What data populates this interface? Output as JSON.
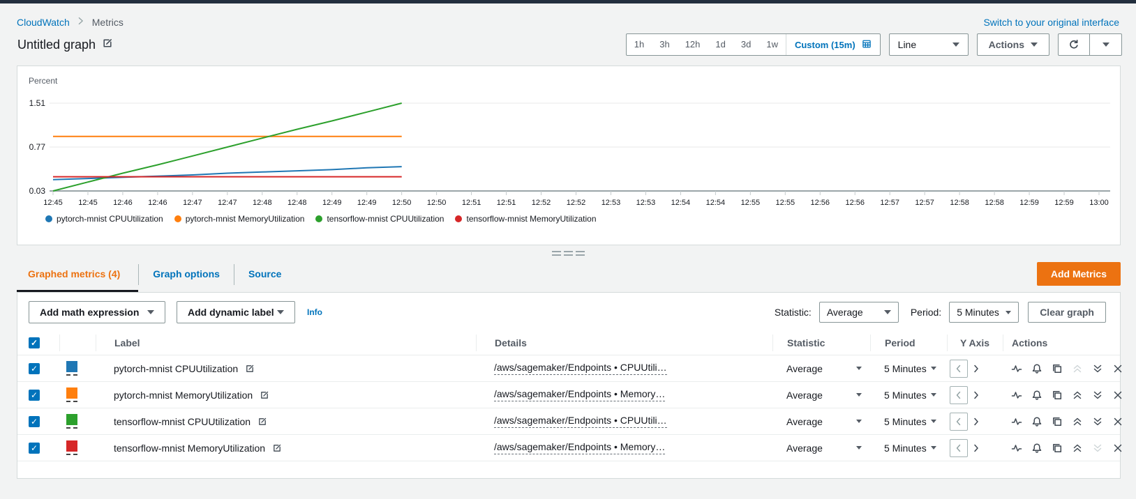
{
  "header": {
    "breadcrumb": [
      "CloudWatch",
      "Metrics"
    ],
    "switch_link": "Switch to your original interface",
    "title": "Untitled graph"
  },
  "controls": {
    "time_ranges": [
      "1h",
      "3h",
      "12h",
      "1d",
      "3d",
      "1w"
    ],
    "custom_range": "Custom (15m)",
    "chart_type": "Line",
    "actions_label": "Actions"
  },
  "chart_data": {
    "type": "line",
    "ylabel": "Percent",
    "yticks": [
      1.51,
      0.77,
      0.03
    ],
    "ylim": [
      0.03,
      1.51
    ],
    "grid": true,
    "legend_position": "bottom",
    "x_axis_labels": [
      "12:45",
      "12:45",
      "12:46",
      "12:46",
      "12:47",
      "12:47",
      "12:48",
      "12:48",
      "12:49",
      "12:49",
      "12:50",
      "12:50",
      "12:51",
      "12:51",
      "12:52",
      "12:52",
      "12:53",
      "12:53",
      "12:54",
      "12:54",
      "12:55",
      "12:55",
      "12:56",
      "12:56",
      "12:57",
      "12:57",
      "12:58",
      "12:58",
      "12:59",
      "12:59",
      "13:00"
    ],
    "note": "data points span 12:45 through 12:50 only; axis extends to 13:00",
    "series": [
      {
        "name": "pytorch-mnist CPUUtilization",
        "color": "#1f77b4",
        "values": [
          0.22,
          0.24,
          0.26,
          0.28,
          0.3,
          0.33,
          0.35,
          0.37,
          0.39,
          0.42,
          0.44
        ]
      },
      {
        "name": "pytorch-mnist MemoryUtilization",
        "color": "#ff7f0e",
        "values": [
          0.95,
          0.95,
          0.95,
          0.95,
          0.95,
          0.95,
          0.95,
          0.95,
          0.95,
          0.95,
          0.95
        ]
      },
      {
        "name": "tensorflow-mnist CPUUtilization",
        "color": "#2ca02c",
        "values": [
          0.03,
          0.18,
          0.33,
          0.47,
          0.62,
          0.77,
          0.92,
          1.07,
          1.21,
          1.36,
          1.51
        ]
      },
      {
        "name": "tensorflow-mnist MemoryUtilization",
        "color": "#d62728",
        "values": [
          0.27,
          0.27,
          0.27,
          0.27,
          0.27,
          0.27,
          0.27,
          0.27,
          0.27,
          0.27,
          0.27
        ]
      }
    ]
  },
  "panel": {
    "tabs": [
      {
        "label": "Graphed metrics (4)",
        "active": true
      },
      {
        "label": "Graph options",
        "active": false
      },
      {
        "label": "Source",
        "active": false
      }
    ],
    "add_metrics_label": "Add Metrics",
    "toolbar": {
      "add_math_label": "Add math expression",
      "add_dynamic_label": "Add dynamic label",
      "info_label": "Info",
      "statistic_label": "Statistic:",
      "statistic_value": "Average",
      "period_label": "Period:",
      "period_value": "5 Minutes",
      "clear_graph_label": "Clear graph"
    }
  },
  "table": {
    "headers": [
      "Label",
      "Details",
      "Statistic",
      "Period",
      "Y Axis",
      "Actions"
    ],
    "rows": [
      {
        "checked": true,
        "color": "#1f77b4",
        "label": "pytorch-mnist CPUUtilization",
        "details": "/aws/sagemaker/Endpoints • CPUUtili…",
        "statistic": "Average",
        "period": "5 Minutes",
        "move_up_enabled": false,
        "move_down_enabled": true
      },
      {
        "checked": true,
        "color": "#ff7f0e",
        "label": "pytorch-mnist MemoryUtilization",
        "details": "/aws/sagemaker/Endpoints • Memory…",
        "statistic": "Average",
        "period": "5 Minutes",
        "move_up_enabled": true,
        "move_down_enabled": true
      },
      {
        "checked": true,
        "color": "#2ca02c",
        "label": "tensorflow-mnist CPUUtilization",
        "details": "/aws/sagemaker/Endpoints • CPUUtili…",
        "statistic": "Average",
        "period": "5 Minutes",
        "move_up_enabled": true,
        "move_down_enabled": true
      },
      {
        "checked": true,
        "color": "#d62728",
        "label": "tensorflow-mnist MemoryUtilization",
        "details": "/aws/sagemaker/Endpoints • Memory…",
        "statistic": "Average",
        "period": "5 Minutes",
        "move_up_enabled": true,
        "move_down_enabled": false
      }
    ]
  },
  "colors": {
    "accent_orange": "#ec7211",
    "link_blue": "#0073bb",
    "topbar": "#232f3e"
  }
}
